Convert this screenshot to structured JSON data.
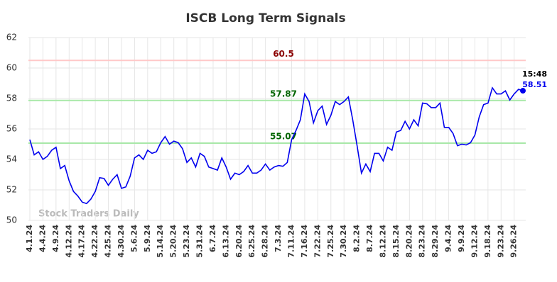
{
  "chart_data": {
    "type": "line",
    "title": "ISCB Long Term Signals",
    "watermark": "Stock Traders Daily",
    "last_time": "15:48",
    "categories": [
      "4.1.24",
      null,
      null,
      "4.4.24",
      null,
      null,
      "4.9.24",
      null,
      null,
      "4.12.24",
      null,
      null,
      "4.17.24",
      null,
      null,
      "4.22.24",
      null,
      null,
      "4.25.24",
      null,
      null,
      "4.30.24",
      null,
      null,
      "5.6.24",
      null,
      null,
      "5.9.24",
      null,
      null,
      "5.14.24",
      null,
      null,
      "5.20.24",
      null,
      null,
      "5.23.24",
      null,
      null,
      "5.31.24",
      null,
      null,
      "6.7.24",
      null,
      null,
      "6.13.24",
      null,
      null,
      "6.20.24",
      null,
      null,
      "6.25.24",
      null,
      null,
      "6.28.24",
      null,
      null,
      "7.3.24",
      null,
      null,
      "7.11.24",
      null,
      null,
      "7.16.24",
      null,
      null,
      "7.22.24",
      null,
      null,
      "7.25.24",
      null,
      null,
      "7.30.24",
      null,
      null,
      "8.2.24",
      null,
      null,
      "8.7.24",
      null,
      null,
      "8.12.24",
      null,
      null,
      "8.15.24",
      null,
      null,
      "8.20.24",
      null,
      null,
      "8.23.24",
      null,
      null,
      "8.29.24",
      null,
      null,
      "9.4.24",
      null,
      null,
      "9.9.24",
      null,
      null,
      "9.12.24",
      null,
      null,
      "9.18.24",
      null,
      null,
      "9.23.24",
      null,
      null,
      "9.26.24",
      null,
      null
    ],
    "series": [
      {
        "name": "ISCB",
        "color": "#0000ee",
        "values": [
          55.3,
          54.3,
          54.5,
          54.0,
          54.2,
          54.6,
          54.8,
          53.4,
          53.6,
          52.6,
          51.9,
          51.6,
          51.2,
          51.1,
          51.4,
          51.9,
          52.8,
          52.75,
          52.3,
          52.7,
          53.0,
          52.1,
          52.2,
          52.9,
          54.1,
          54.3,
          54.0,
          54.6,
          54.4,
          54.5,
          55.1,
          55.5,
          55.0,
          55.2,
          55.1,
          54.7,
          53.8,
          54.1,
          53.5,
          54.4,
          54.2,
          53.5,
          53.4,
          53.3,
          54.1,
          53.5,
          52.7,
          53.1,
          53.0,
          53.2,
          53.6,
          53.1,
          53.1,
          53.3,
          53.7,
          53.3,
          53.5,
          53.6,
          53.55,
          53.8,
          55.3,
          55.9,
          56.6,
          58.3,
          57.8,
          56.4,
          57.2,
          57.5,
          56.3,
          56.9,
          57.8,
          57.6,
          57.8,
          58.1,
          56.6,
          54.9,
          53.1,
          53.7,
          53.2,
          54.4,
          54.4,
          53.9,
          54.8,
          54.6,
          55.8,
          55.9,
          56.5,
          56.0,
          56.6,
          56.2,
          57.7,
          57.65,
          57.4,
          57.4,
          57.7,
          56.1,
          56.1,
          55.7,
          54.9,
          55.0,
          54.95,
          55.1,
          55.6,
          56.8,
          57.6,
          57.7,
          58.7,
          58.3,
          58.3,
          58.5,
          57.9,
          58.3,
          58.6,
          58.51
        ]
      }
    ],
    "hlines": [
      {
        "value": 60.5,
        "color": "#ffc8c8",
        "label_color": "#8b0000"
      },
      {
        "value": 57.87,
        "color": "#a8e8a8",
        "label_color": "#006400"
      },
      {
        "value": 55.07,
        "color": "#a8e8a8",
        "label_color": "#006400"
      }
    ],
    "ylim": [
      50,
      62
    ],
    "yticks": [
      50,
      52,
      54,
      56,
      58,
      60,
      62
    ],
    "grid": true
  }
}
